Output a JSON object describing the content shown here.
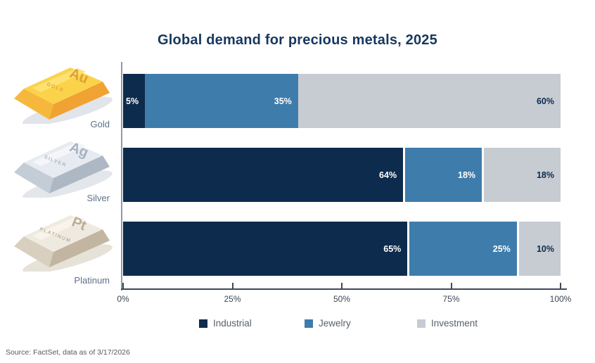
{
  "title": "Global demand for precious metals, 2025",
  "source_note": "Source: FactSet, data as of 3/17/2026",
  "metals": [
    {
      "label": "Gold",
      "symbol": "Au",
      "engraving": "GOLD"
    },
    {
      "label": "Silver",
      "symbol": "Ag",
      "engraving": "SILVER"
    },
    {
      "label": "Platinum",
      "symbol": "Pt",
      "engraving": "PLATINUM"
    }
  ],
  "colors": {
    "title_navy": "#17375e",
    "industrial": "#0d2b4c",
    "jewelry": "#3e7cac",
    "investment": "#c7ccd3",
    "axis": "#3d4a59"
  },
  "chart_data": {
    "type": "bar",
    "orientation": "horizontal",
    "stacked": true,
    "title": "Global demand for precious metals, 2025",
    "categories": [
      "Gold",
      "Silver",
      "Platinum"
    ],
    "series": [
      {
        "name": "Industrial",
        "color": "#0d2b4c",
        "label_color": "#ffffff",
        "values": [
          5,
          64,
          65
        ]
      },
      {
        "name": "Jewelry",
        "color": "#3e7cac",
        "label_color": "#ffffff",
        "values": [
          35,
          18,
          25
        ]
      },
      {
        "name": "Investment",
        "color": "#c7ccd3",
        "label_color": "#0d2b4c",
        "values": [
          60,
          18,
          10
        ]
      }
    ],
    "value_suffix": "%",
    "data_labels": true,
    "x_axis": {
      "ticks": [
        "0%",
        "25%",
        "50%",
        "75%",
        "100%"
      ],
      "range": [
        0,
        100
      ]
    },
    "legend": {
      "position": "bottom",
      "items": [
        "Industrial",
        "Jewelry",
        "Investment"
      ]
    }
  }
}
